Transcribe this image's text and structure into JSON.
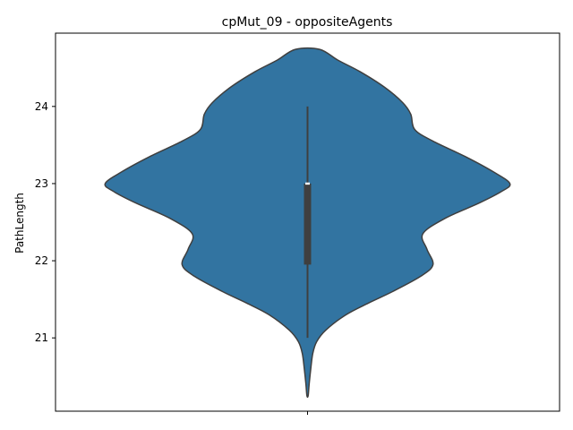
{
  "chart_data": {
    "type": "violin",
    "title": "cpMut_09 - oppositeAgents",
    "xlabel": "",
    "ylabel": "PathLength",
    "ylim": [
      20.05,
      24.95
    ],
    "yticks": [
      21,
      22,
      23,
      24
    ],
    "categories": [
      ""
    ],
    "grid": false,
    "legend": "none",
    "color": "#3274a1",
    "edge_color": "#3f3f3f",
    "box": {
      "whisker_low": 21,
      "q1": 21.95,
      "median": 23,
      "q3": 23,
      "whisker_high": 24
    },
    "density_profile": [
      {
        "y": 20.25,
        "w": 0.003
      },
      {
        "y": 20.4,
        "w": 0.008
      },
      {
        "y": 20.6,
        "w": 0.016
      },
      {
        "y": 20.8,
        "w": 0.026
      },
      {
        "y": 20.95,
        "w": 0.045
      },
      {
        "y": 21.1,
        "w": 0.09
      },
      {
        "y": 21.3,
        "w": 0.19
      },
      {
        "y": 21.45,
        "w": 0.3
      },
      {
        "y": 21.6,
        "w": 0.42
      },
      {
        "y": 21.8,
        "w": 0.56
      },
      {
        "y": 21.95,
        "w": 0.62
      },
      {
        "y": 22.15,
        "w": 0.59
      },
      {
        "y": 22.35,
        "w": 0.57
      },
      {
        "y": 22.55,
        "w": 0.68
      },
      {
        "y": 22.75,
        "w": 0.85
      },
      {
        "y": 22.9,
        "w": 0.96
      },
      {
        "y": 23.0,
        "w": 1.0
      },
      {
        "y": 23.15,
        "w": 0.92
      },
      {
        "y": 23.35,
        "w": 0.78
      },
      {
        "y": 23.55,
        "w": 0.62
      },
      {
        "y": 23.7,
        "w": 0.53
      },
      {
        "y": 23.9,
        "w": 0.51
      },
      {
        "y": 24.05,
        "w": 0.47
      },
      {
        "y": 24.25,
        "w": 0.38
      },
      {
        "y": 24.45,
        "w": 0.26
      },
      {
        "y": 24.6,
        "w": 0.15
      },
      {
        "y": 24.74,
        "w": 0.06
      }
    ]
  }
}
